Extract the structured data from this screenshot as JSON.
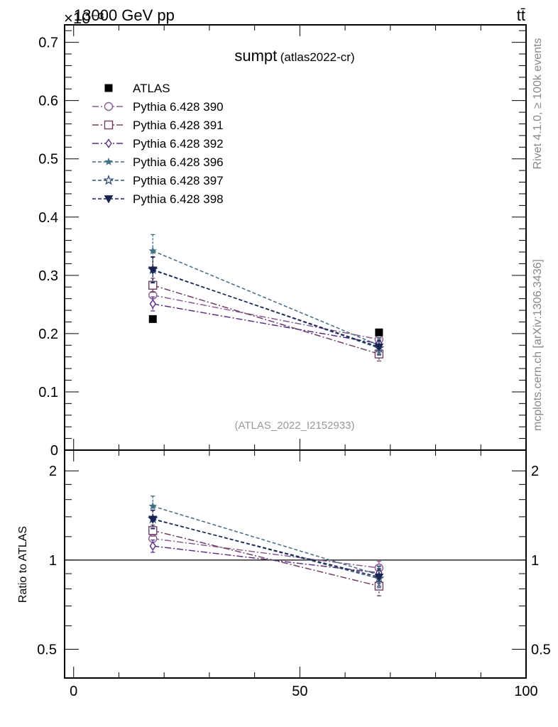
{
  "header": {
    "energy_label": "13000 GeV pp",
    "process_label": "tt̄",
    "exponent_label": "×10⁻³"
  },
  "side": {
    "rivet_label": "Rivet 4.1.0, ≥ 100k events",
    "mcplots_label": "mcplots.cern.ch [arXiv:1306.3436]"
  },
  "chart_data": {
    "type": "scatter",
    "title": "sumpt",
    "subtitle": "(atlas2022-cr)",
    "analysis_label": "(ATLAS_2022_I2152933)",
    "xlabel": "",
    "ylabel": "",
    "ratio_ylabel": "Ratio to ATLAS",
    "xlim": [
      -2,
      100
    ],
    "ylim": [
      0,
      0.73
    ],
    "ratio_ylim": [
      0.4,
      2.35
    ],
    "x_ticks": [
      0,
      50,
      100
    ],
    "x_tick_labels": [
      "0",
      "50",
      "100"
    ],
    "y_ticks": [
      0,
      0.1,
      0.2,
      0.3,
      0.4,
      0.5,
      0.6,
      0.7
    ],
    "y_tick_labels": [
      "0",
      "0.1",
      "0.2",
      "0.3",
      "0.4",
      "0.5",
      "0.6",
      "0.7"
    ],
    "ratio_ticks": [
      0.5,
      1,
      2
    ],
    "ratio_tick_labels": [
      "0.5",
      "1",
      "2"
    ],
    "data": {
      "name": "ATLAS",
      "color": "#000000",
      "x": [
        17.5,
        67.5
      ],
      "y": [
        0.225,
        0.202
      ]
    },
    "series": [
      {
        "name": "Pythia 6.428 390",
        "color": "#8a5a94",
        "marker": "circle-open",
        "dash": "9,3,2,3",
        "x": [
          17.5,
          67.5
        ],
        "y": [
          0.266,
          0.19
        ],
        "err": [
          0.012,
          0.01
        ]
      },
      {
        "name": "Pythia 6.428 391",
        "color": "#6e3f63",
        "marker": "square-open",
        "dash": "9,3,2,3",
        "x": [
          17.5,
          67.5
        ],
        "y": [
          0.283,
          0.165
        ],
        "err": [
          0.012,
          0.012
        ]
      },
      {
        "name": "Pythia 6.428 392",
        "color": "#5b2e84",
        "marker": "diamond-open",
        "dash": "9,3,2,3",
        "x": [
          17.5,
          67.5
        ],
        "y": [
          0.251,
          0.183
        ],
        "err": [
          0.012,
          0.01
        ]
      },
      {
        "name": "Pythia 6.428 396",
        "color": "#3f6e83",
        "marker": "star-filled",
        "dash": "5,3",
        "x": [
          17.5,
          67.5
        ],
        "y": [
          0.342,
          0.18
        ],
        "err": [
          0.028,
          0.012
        ]
      },
      {
        "name": "Pythia 6.428 397",
        "color": "#2f4f74",
        "marker": "star-open",
        "dash": "5,3",
        "x": [
          17.5,
          67.5
        ],
        "y": [
          0.31,
          0.175
        ],
        "err": [
          0.022,
          0.012
        ]
      },
      {
        "name": "Pythia 6.428 398",
        "color": "#1a2250",
        "marker": "triangle-down-filled",
        "dash": "5,3",
        "x": [
          17.5,
          67.5
        ],
        "y": [
          0.309,
          0.177
        ],
        "err": [
          0.022,
          0.012
        ]
      }
    ]
  }
}
